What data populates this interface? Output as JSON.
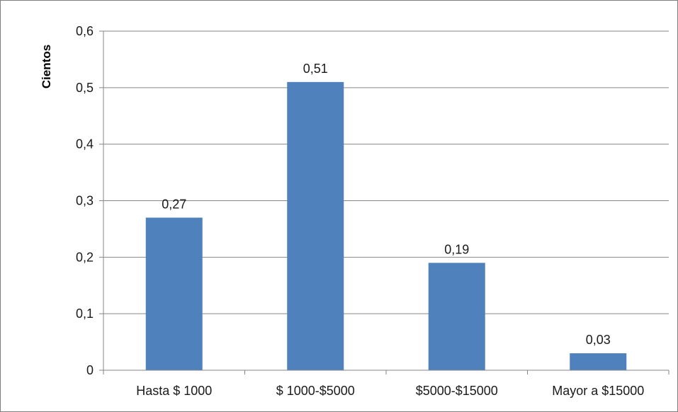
{
  "colors": {
    "bar": "#4f81bd",
    "grid": "#868686",
    "axis": "#868686",
    "text": "#1a1a1a",
    "frame": "#7f7f7f"
  },
  "chart_data": {
    "type": "bar",
    "categories": [
      "Hasta $ 1000",
      "$ 1000-$5000",
      "$5000-$15000",
      "Mayor a $15000"
    ],
    "series": [
      {
        "values": [
          0.27,
          0.51,
          0.19,
          0.03
        ]
      }
    ],
    "data_labels": [
      "0,27",
      "0,51",
      "0,19",
      "0,03"
    ],
    "ylabel": "Cientos",
    "xlabel": "",
    "ylim": [
      0,
      0.6
    ],
    "yticks": [
      0,
      0.1,
      0.2,
      0.3,
      0.4,
      0.5,
      0.6
    ],
    "ytick_labels": [
      "0",
      "0,1",
      "0,2",
      "0,3",
      "0,4",
      "0,5",
      "0,6"
    ],
    "grid": true,
    "legend": "none"
  }
}
